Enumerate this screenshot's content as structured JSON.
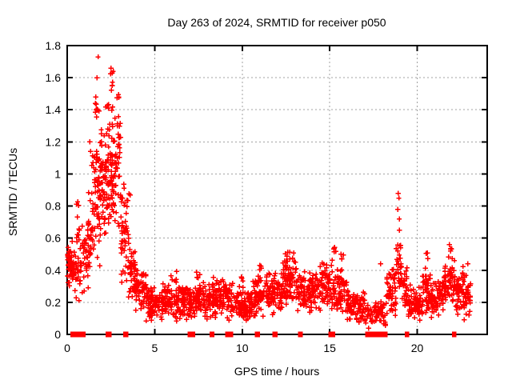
{
  "chart": {
    "background_color": "#ffffff",
    "text_color": "#000000",
    "border_color": "#000000",
    "grid_color": "#a0a0a0",
    "marker_color": "#ff0000"
  },
  "chart_data": {
    "type": "scatter",
    "title": "Day 263 of 2024, SRMTID for receiver p050",
    "xlabel": "GPS time / hours",
    "ylabel": "SRMTID / TECUs",
    "xlim": [
      0,
      24
    ],
    "ylim": [
      0,
      1.8
    ],
    "xtick_values": [
      0,
      5,
      10,
      15,
      20
    ],
    "xtick_labels": [
      "0",
      "5",
      "10",
      "15",
      "20"
    ],
    "ytick_values": [
      0,
      0.2,
      0.4,
      0.6,
      0.8,
      1,
      1.2,
      1.4,
      1.6,
      1.8
    ],
    "ytick_labels": [
      "0",
      "0.2",
      "0.4",
      "0.6",
      "0.8",
      "1",
      "1.2",
      "1.4",
      "1.6",
      "1.8"
    ],
    "grid": true,
    "legend": "none",
    "marker": {
      "shape": "plus",
      "color": "#ff0000",
      "size": 7
    },
    "segments_format": "[start_hour, end_hour, point_count, y_min_TECU, y_max_TECU]",
    "segments": [
      [
        0.02,
        0.4,
        50,
        0.26,
        0.6
      ],
      [
        0.4,
        0.78,
        32,
        0.18,
        0.7
      ],
      [
        0.5,
        0.68,
        4,
        0.72,
        0.9
      ],
      [
        0.78,
        1.15,
        30,
        0.22,
        0.7
      ],
      [
        1.15,
        1.55,
        42,
        0.26,
        0.95
      ],
      [
        1.3,
        1.55,
        6,
        0.95,
        1.3
      ],
      [
        1.55,
        1.95,
        58,
        0.4,
        1.3
      ],
      [
        1.6,
        1.9,
        7,
        1.3,
        1.52
      ],
      [
        1.95,
        2.4,
        60,
        0.55,
        1.35
      ],
      [
        2.05,
        2.38,
        5,
        1.35,
        1.47
      ],
      [
        2.4,
        3.05,
        90,
        0.55,
        1.45
      ],
      [
        2.45,
        2.7,
        5,
        1.48,
        1.67
      ],
      [
        2.85,
        3.0,
        3,
        1.45,
        1.55
      ],
      [
        3.05,
        3.5,
        48,
        0.3,
        0.98
      ],
      [
        3.5,
        3.88,
        42,
        0.18,
        0.62
      ],
      [
        3.52,
        3.6,
        2,
        0.82,
        0.9
      ],
      [
        3.88,
        4.5,
        58,
        0.12,
        0.48
      ],
      [
        4.5,
        6.5,
        175,
        0.07,
        0.32
      ],
      [
        5.9,
        6.3,
        6,
        0.3,
        0.4
      ],
      [
        6.5,
        8.0,
        135,
        0.08,
        0.34
      ],
      [
        7.4,
        7.7,
        5,
        0.3,
        0.4
      ],
      [
        8.0,
        9.5,
        135,
        0.08,
        0.36
      ],
      [
        9.5,
        10.5,
        90,
        0.07,
        0.31
      ],
      [
        9.8,
        10.1,
        4,
        0.28,
        0.38
      ],
      [
        10.5,
        11.3,
        72,
        0.09,
        0.38
      ],
      [
        10.95,
        11.1,
        4,
        0.38,
        0.45
      ],
      [
        11.3,
        12.3,
        88,
        0.1,
        0.4
      ],
      [
        12.3,
        13.1,
        82,
        0.17,
        0.5
      ],
      [
        12.45,
        12.95,
        6,
        0.45,
        0.53
      ],
      [
        13.1,
        14.0,
        80,
        0.12,
        0.4
      ],
      [
        14.0,
        14.8,
        72,
        0.14,
        0.46
      ],
      [
        14.8,
        16.0,
        100,
        0.12,
        0.44
      ],
      [
        15.05,
        15.35,
        6,
        0.44,
        0.56
      ],
      [
        15.65,
        15.85,
        4,
        0.42,
        0.51
      ],
      [
        16.0,
        17.0,
        85,
        0.06,
        0.28
      ],
      [
        17.0,
        18.2,
        70,
        0.03,
        0.22
      ],
      [
        18.2,
        18.8,
        55,
        0.1,
        0.46
      ],
      [
        18.8,
        19.1,
        32,
        0.25,
        0.62
      ],
      [
        19.1,
        19.45,
        30,
        0.15,
        0.5
      ],
      [
        19.45,
        20.3,
        75,
        0.08,
        0.32
      ],
      [
        20.3,
        20.75,
        42,
        0.1,
        0.45
      ],
      [
        20.45,
        20.62,
        3,
        0.45,
        0.56
      ],
      [
        20.75,
        21.5,
        65,
        0.1,
        0.35
      ],
      [
        21.5,
        22.15,
        65,
        0.14,
        0.5
      ],
      [
        21.75,
        22.05,
        5,
        0.48,
        0.56
      ],
      [
        22.15,
        22.65,
        50,
        0.1,
        0.44
      ],
      [
        22.65,
        23.05,
        40,
        0.07,
        0.42
      ]
    ],
    "peak_points": [
      [
        1.76,
        1.73
      ],
      [
        1.71,
        1.6
      ],
      [
        1.64,
        1.48
      ],
      [
        1.61,
        1.44
      ],
      [
        1.3,
        1.2
      ],
      [
        2.5,
        1.66
      ],
      [
        2.57,
        1.63
      ],
      [
        2.63,
        1.64
      ],
      [
        2.95,
        1.48
      ],
      [
        17.9,
        0.44
      ],
      [
        18.92,
        0.88
      ],
      [
        18.95,
        0.85
      ],
      [
        18.9,
        0.78
      ],
      [
        18.97,
        0.72
      ],
      [
        18.99,
        0.65
      ],
      [
        22.9,
        0.44
      ]
    ],
    "zero_intervals": [
      [
        0.28,
        0.38
      ],
      [
        0.42,
        0.5
      ],
      [
        0.66,
        0.7
      ],
      [
        0.74,
        0.78
      ],
      [
        0.86,
        0.95
      ],
      [
        2.28,
        2.32
      ],
      [
        2.4,
        2.44
      ],
      [
        3.28,
        3.4
      ],
      [
        6.98,
        7.08
      ],
      [
        7.14,
        7.22
      ],
      [
        8.22,
        8.32
      ],
      [
        9.12,
        9.18
      ],
      [
        9.3,
        9.4
      ],
      [
        10.82,
        10.92
      ],
      [
        11.82,
        11.92
      ],
      [
        13.28,
        13.38
      ],
      [
        15.02,
        15.08
      ],
      [
        15.16,
        15.22
      ],
      [
        17.12,
        17.58
      ],
      [
        17.66,
        17.72
      ],
      [
        17.78,
        18.02
      ],
      [
        18.1,
        18.22
      ],
      [
        19.38,
        19.46
      ],
      [
        22.08,
        22.14
      ]
    ]
  }
}
